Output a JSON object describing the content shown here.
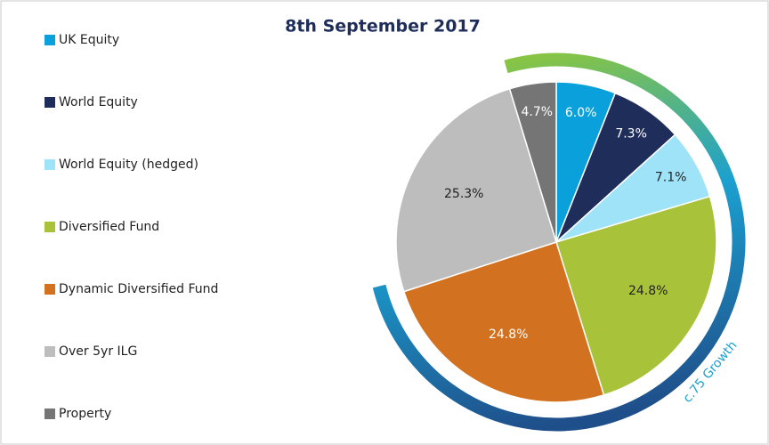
{
  "chart_data": {
    "type": "pie",
    "title": "8th September 2017",
    "categories": [
      "UK Equity",
      "World Equity",
      "World Equity (hedged)",
      "Diversified Fund",
      "Dynamic Diversified Fund",
      "Over 5yr ILG",
      "Property"
    ],
    "values": [
      6.0,
      7.3,
      7.1,
      24.8,
      24.8,
      25.3,
      4.7
    ],
    "value_labels": [
      "6.0%",
      "7.3%",
      "7.1%",
      "24.8%",
      "24.8%",
      "25.3%",
      "4.7%"
    ],
    "colors": [
      "#0aa0dc",
      "#1f2d5a",
      "#9fe3f8",
      "#a8c23a",
      "#d2711f",
      "#bdbdbd",
      "#757575"
    ],
    "annotation": "c.75 Growth"
  }
}
